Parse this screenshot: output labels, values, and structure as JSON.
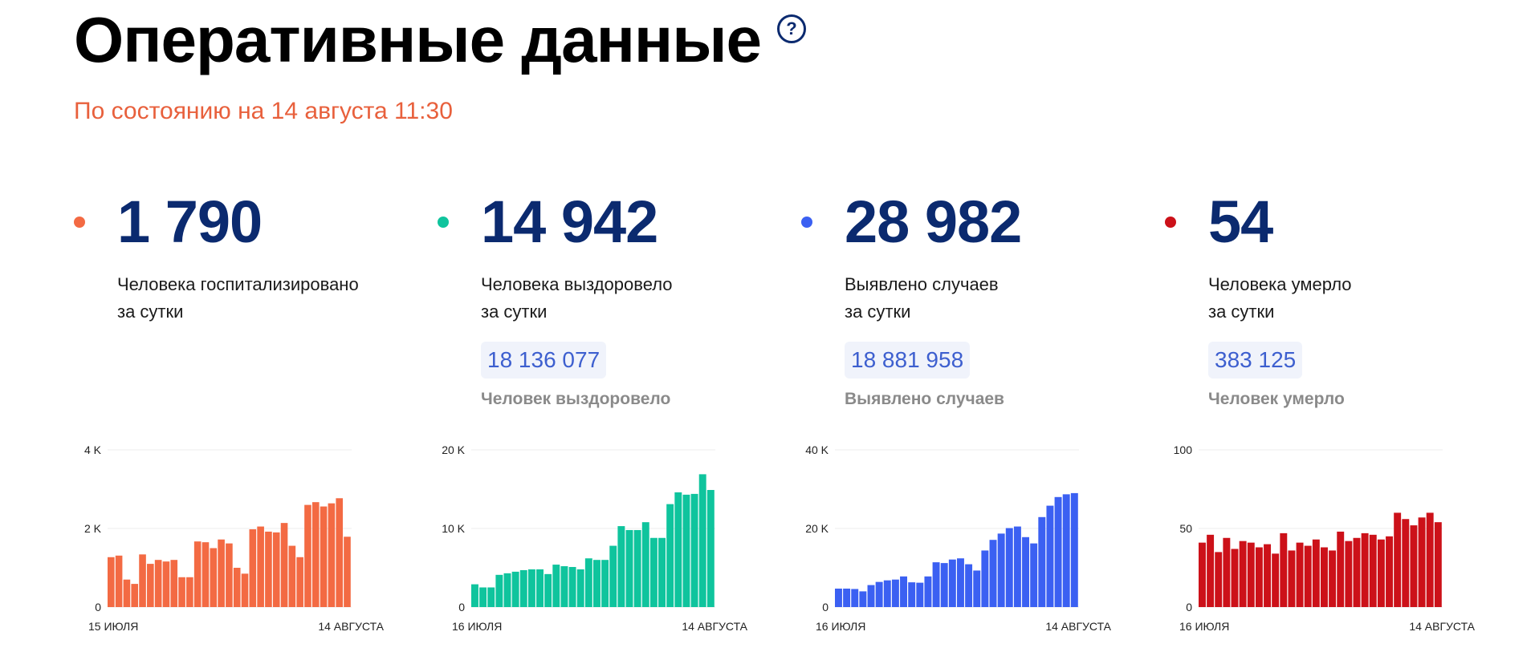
{
  "header": {
    "title": "Оперативные данные",
    "help_icon": "?",
    "updated": "По состоянию на 14 августа 11:30"
  },
  "cards": [
    {
      "number": "1 790",
      "desc_line1": "Человека госпитализировано",
      "desc_line2": "за сутки",
      "color": "#f36a43"
    },
    {
      "number": "14 942",
      "desc_line1": "Человека выздоровело",
      "desc_line2": "за сутки",
      "total": "18 136 077",
      "total_label": "Человек выздоровело",
      "color": "#0fc49d"
    },
    {
      "number": "28 982",
      "desc_line1": "Выявлено случаев",
      "desc_line2": "за сутки",
      "total": "18 881 958",
      "total_label": "Выявлено случаев",
      "color": "#3b60f2"
    },
    {
      "number": "54",
      "desc_line1": "Человека умерло",
      "desc_line2": "за сутки",
      "total": "383 125",
      "total_label": "Человек умерло",
      "color": "#cc1119"
    }
  ],
  "chart_data": [
    {
      "type": "bar",
      "color": "#f36a43",
      "ylim": [
        0,
        4000
      ],
      "yticks": [
        {
          "v": 0,
          "label": "0"
        },
        {
          "v": 2000,
          "label": "2 K"
        },
        {
          "v": 4000,
          "label": "4 K"
        }
      ],
      "x_start_label": "15 ИЮЛЯ",
      "x_end_label": "14 АВГУСТА",
      "values": [
        1270,
        1310,
        700,
        590,
        1340,
        1100,
        1200,
        1160,
        1200,
        760,
        760,
        1670,
        1650,
        1500,
        1720,
        1620,
        1000,
        850,
        1980,
        2050,
        1920,
        1900,
        2140,
        1560,
        1270,
        2600,
        2670,
        2560,
        2640,
        2770,
        1790
      ]
    },
    {
      "type": "bar",
      "color": "#0fc49d",
      "ylim": [
        0,
        20000
      ],
      "yticks": [
        {
          "v": 0,
          "label": "0"
        },
        {
          "v": 10000,
          "label": "10 K"
        },
        {
          "v": 20000,
          "label": "20 K"
        }
      ],
      "x_start_label": "16 ИЮЛЯ",
      "x_end_label": "14 АВГУСТА",
      "values": [
        2900,
        2500,
        2500,
        4100,
        4300,
        4500,
        4700,
        4800,
        4800,
        4200,
        5400,
        5200,
        5100,
        4800,
        6200,
        6000,
        6000,
        7800,
        10300,
        9800,
        9800,
        10800,
        8800,
        8800,
        13100,
        14600,
        14300,
        14400,
        16900,
        14900
      ]
    },
    {
      "type": "bar",
      "color": "#3b60f2",
      "ylim": [
        0,
        40000
      ],
      "yticks": [
        {
          "v": 0,
          "label": "0"
        },
        {
          "v": 20000,
          "label": "20 K"
        },
        {
          "v": 40000,
          "label": "40 K"
        }
      ],
      "x_start_label": "16 ИЮЛЯ",
      "x_end_label": "14 АВГУСТА",
      "values": [
        4700,
        4700,
        4600,
        4000,
        5600,
        6400,
        6800,
        7000,
        7800,
        6300,
        6200,
        7800,
        11400,
        11200,
        12100,
        12400,
        10900,
        9300,
        14400,
        17100,
        18700,
        20100,
        20500,
        17800,
        16200,
        22900,
        25800,
        28000,
        28700,
        29000
      ]
    },
    {
      "type": "bar",
      "color": "#cc1119",
      "ylim": [
        0,
        100
      ],
      "yticks": [
        {
          "v": 0,
          "label": "0"
        },
        {
          "v": 50,
          "label": "50"
        },
        {
          "v": 100,
          "label": "100"
        }
      ],
      "x_start_label": "16 ИЮЛЯ",
      "x_end_label": "14 АВГУСТА",
      "values": [
        41,
        46,
        35,
        44,
        37,
        42,
        41,
        38,
        40,
        34,
        47,
        36,
        41,
        39,
        43,
        38,
        36,
        48,
        42,
        44,
        47,
        46,
        43,
        45,
        60,
        56,
        52,
        57,
        60,
        54
      ]
    }
  ]
}
